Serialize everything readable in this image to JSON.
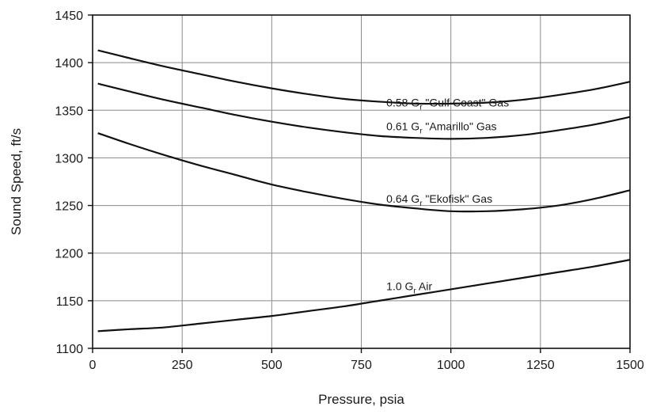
{
  "chart_data": {
    "type": "line",
    "title": "",
    "xlabel": "Pressure, psia",
    "ylabel": "Sound Speed, ft/s",
    "xlim": [
      0,
      1500
    ],
    "ylim": [
      1100,
      1450
    ],
    "xticks": [
      0,
      250,
      500,
      750,
      1000,
      1250,
      1500
    ],
    "yticks": [
      1100,
      1150,
      1200,
      1250,
      1300,
      1350,
      1400,
      1450
    ],
    "grid": true,
    "legend": "none (series labelled inline on curves)",
    "series": [
      {
        "name": "0.58 Gr \"Gulf Coast\" Gas",
        "label_parts": [
          "0.58 G",
          "r",
          " \"Gulf Coast\" Gas"
        ],
        "label_at": [
          820,
          1354
        ],
        "x": [
          14.7,
          100,
          200,
          300,
          400,
          500,
          600,
          700,
          800,
          900,
          1000,
          1100,
          1200,
          1300,
          1400,
          1500
        ],
        "y": [
          1413,
          1405,
          1396,
          1388,
          1380,
          1373,
          1367,
          1362,
          1359,
          1357,
          1357,
          1358,
          1361,
          1366,
          1372,
          1380
        ]
      },
      {
        "name": "0.61 Gr \"Amarillo\" Gas",
        "label_parts": [
          "0.61 G",
          "r",
          " \"Amarillo\" Gas"
        ],
        "label_at": [
          820,
          1329
        ],
        "x": [
          14.7,
          100,
          200,
          300,
          400,
          500,
          600,
          700,
          800,
          900,
          1000,
          1100,
          1200,
          1300,
          1400,
          1500
        ],
        "y": [
          1378,
          1370,
          1361,
          1353,
          1345,
          1338,
          1332,
          1327,
          1323,
          1321,
          1320,
          1321,
          1324,
          1329,
          1335,
          1343
        ]
      },
      {
        "name": "0.64 Gr \"Ekofisk\" Gas",
        "label_parts": [
          "0.64 G",
          "r",
          " \"Ekofisk\" Gas"
        ],
        "label_at": [
          820,
          1253
        ],
        "x": [
          14.7,
          100,
          200,
          300,
          400,
          500,
          600,
          700,
          800,
          900,
          1000,
          1100,
          1200,
          1300,
          1400,
          1500
        ],
        "y": [
          1326,
          1315,
          1303,
          1292,
          1282,
          1272,
          1264,
          1257,
          1251,
          1247,
          1244,
          1244,
          1246,
          1250,
          1257,
          1266
        ]
      },
      {
        "name": "1.0 Gr Air",
        "label_parts": [
          "1.0 G",
          "r",
          " Air"
        ],
        "label_at": [
          820,
          1161
        ],
        "x": [
          14.7,
          100,
          200,
          300,
          400,
          500,
          600,
          700,
          800,
          900,
          1000,
          1100,
          1200,
          1300,
          1400,
          1500
        ],
        "y": [
          1118,
          1120,
          1122,
          1126,
          1130,
          1134,
          1139,
          1144,
          1150,
          1156,
          1162,
          1168,
          1174,
          1180,
          1186,
          1193
        ]
      }
    ]
  }
}
